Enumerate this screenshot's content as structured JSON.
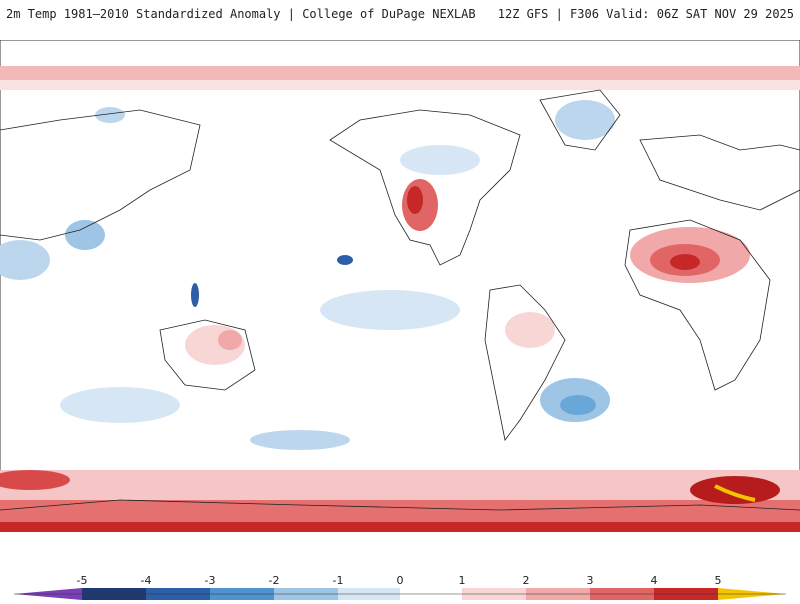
{
  "header": {
    "title_left": "2m Temp 1981–2010 Standardized Anomaly | College of DuPage NEXLAB",
    "title_right": "12Z GFS | F306 Valid: 06Z SAT NOV 29 2025"
  },
  "map": {
    "projection": "equirectangular-pacific-centered",
    "field": "2m temperature standardized anomaly"
  },
  "colorbar": {
    "labels": [
      "-5",
      "-4",
      "-3",
      "-2",
      "-1",
      "0",
      "1",
      "2",
      "3",
      "4",
      "5"
    ],
    "colors": [
      "#7a3fb5",
      "#1f3a73",
      "#2d5ea8",
      "#4f93d0",
      "#9ec5e6",
      "#d7e6f4",
      "#ffffff",
      "#f8d6d6",
      "#f1a8a8",
      "#e26565",
      "#c82828",
      "#8c0a0a",
      "#f5c400"
    ]
  }
}
